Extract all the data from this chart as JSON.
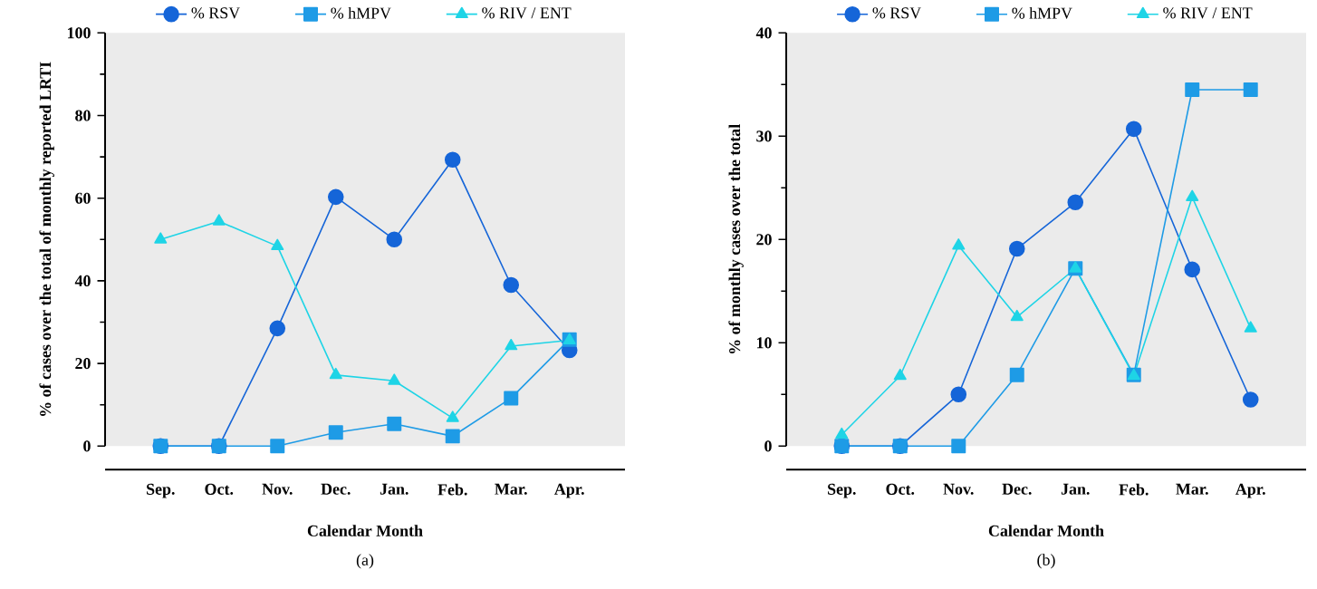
{
  "chart_data": [
    {
      "type": "line",
      "xlabel": "Calendar Month",
      "ylabel": "% of cases over the total of monthly reported LRTI",
      "annotations": [
        "(a)"
      ],
      "legend": "top",
      "categories": [
        "Sep.",
        "Oct.",
        "Nov.",
        "Dec.",
        "Jan.",
        "Feb.",
        "Mar.",
        "Apr."
      ],
      "ylim": [
        0,
        100
      ],
      "yticks": [
        0,
        20,
        40,
        60,
        80,
        100
      ],
      "series": [
        {
          "name": "% RSV",
          "color": "#1565d8",
          "marker": "circle",
          "values": [
            0,
            0,
            28.5,
            60.3,
            50,
            69.3,
            39,
            23.2
          ]
        },
        {
          "name": "% hMPV",
          "color": "#1e9be6",
          "marker": "square",
          "values": [
            0,
            0,
            0,
            3.3,
            5.4,
            2.4,
            11.6,
            25.8
          ]
        },
        {
          "name": "% RIV / ENT",
          "color": "#1ed4e6",
          "marker": "triangle",
          "values": [
            50,
            54.4,
            48.4,
            17.2,
            15.8,
            6.8,
            24.2,
            25.6
          ]
        }
      ]
    },
    {
      "type": "line",
      "xlabel": "Calendar Month",
      "ylabel": "% of monthly cases over the total",
      "annotations": [
        "(b)"
      ],
      "legend": "top",
      "categories": [
        "Sep.",
        "Oct.",
        "Nov.",
        "Dec.",
        "Jan.",
        "Feb.",
        "Mar.",
        "Apr."
      ],
      "ylim": [
        0,
        40
      ],
      "yticks": [
        0,
        10,
        20,
        30,
        40
      ],
      "series": [
        {
          "name": "% RSV",
          "color": "#1565d8",
          "marker": "circle",
          "values": [
            0,
            0,
            5,
            19.1,
            23.6,
            30.7,
            17.1,
            4.5
          ]
        },
        {
          "name": "% hMPV",
          "color": "#1e9be6",
          "marker": "square",
          "values": [
            0,
            0,
            0,
            6.9,
            17.2,
            6.9,
            34.5,
            34.5
          ]
        },
        {
          "name": "% RIV / ENT",
          "color": "#1ed4e6",
          "marker": "triangle",
          "values": [
            1.1,
            6.8,
            19.4,
            12.5,
            17.2,
            6.8,
            24.1,
            11.4
          ]
        }
      ]
    }
  ]
}
